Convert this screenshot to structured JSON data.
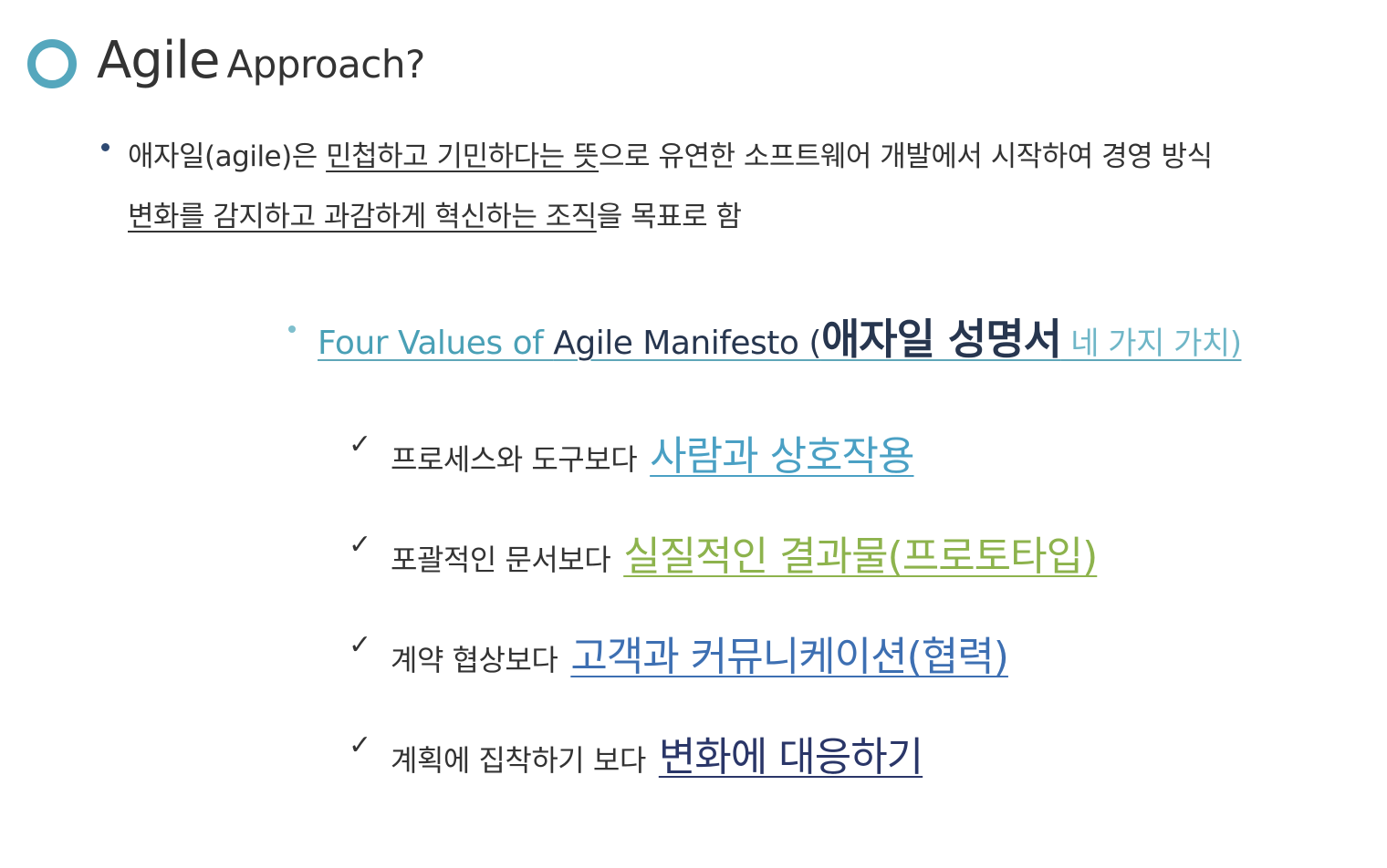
{
  "title": {
    "main": "Agile",
    "sub": "Approach?"
  },
  "intro": {
    "line1_plain_a": "애자일(agile)은 ",
    "line1_underlined": "민첩하고 기민하다는 뜻",
    "line1_plain_b": "으로 유연한 소프트웨어 개발에서 시작하여 경영 방식",
    "line2_underlined": "변화를 감지하고 과감하게 혁신하는 조직",
    "line2_plain": "을 목표로 함"
  },
  "manifesto": {
    "part_teal": "Four Values of ",
    "part_navy": "Agile Manifesto (",
    "part_korean": "애자일 성명서",
    "part_light": " 네 가지 가치)"
  },
  "values": [
    {
      "check": "✓",
      "plain": "프로세스와 도구보다",
      "highlight": "사람과 상호작용",
      "color": "#4aa0c4"
    },
    {
      "check": "✓",
      "plain": "포괄적인 문서보다",
      "highlight": "실질적인 결과물(프로토타입)",
      "color": "#8db34d"
    },
    {
      "check": "✓",
      "plain": "계약 협상보다",
      "highlight": "고객과 커뮤니케이션(협력)",
      "color": "#3d6fb2"
    },
    {
      "check": "✓",
      "plain": "계획에 집착하기 보다",
      "highlight": "변화에 대응하기",
      "color": "#2a3668"
    }
  ],
  "colors": {
    "accent_teal": "#55a7bd",
    "bullet_navy": "#2f4a73",
    "text": "#333333"
  }
}
